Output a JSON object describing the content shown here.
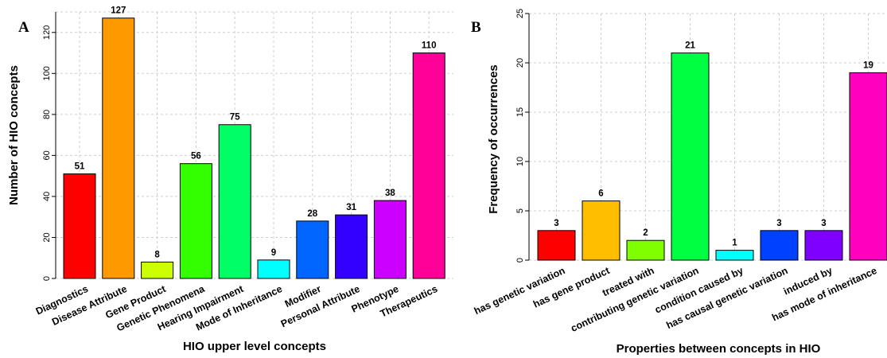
{
  "chart_data": [
    {
      "type": "bar",
      "panel_label": "A",
      "xlabel": "HIO upper level concepts",
      "ylabel": "Number of HIO concepts",
      "ylim": [
        0,
        130
      ],
      "yticks": [
        0,
        20,
        40,
        60,
        80,
        100,
        120
      ],
      "grid": true,
      "categories": [
        "Diagnostics",
        "Disease Attribute",
        "Gene Product",
        "Genetic Phenomena",
        "Hearing Impairment",
        "Mode of Inheritance",
        "Modifier",
        "Personal Attribute",
        "Phenotype",
        "Therapeutics"
      ],
      "values": [
        51,
        127,
        8,
        56,
        75,
        9,
        28,
        31,
        38,
        110
      ],
      "colors": [
        "#ff0000",
        "#ff9900",
        "#ccff00",
        "#33ff00",
        "#00ff66",
        "#00ffff",
        "#0066ff",
        "#3300ff",
        "#cc00ff",
        "#ff0099"
      ]
    },
    {
      "type": "bar",
      "panel_label": "B",
      "xlabel": "Properties between concepts in HIO",
      "ylabel": "Frequency of occurrences",
      "ylim": [
        0,
        25
      ],
      "yticks": [
        0,
        5,
        10,
        15,
        20,
        25
      ],
      "grid": true,
      "categories": [
        "has genetic variation",
        "has gene product",
        "treated with",
        "contributing genetic variation",
        "condition caused by",
        "has causal genetic variation",
        "induced by",
        "has mode of inheritance"
      ],
      "values": [
        3,
        6,
        2,
        21,
        1,
        3,
        3,
        19
      ],
      "colors": [
        "#ff0000",
        "#ffbf00",
        "#80ff00",
        "#00ff40",
        "#00ffff",
        "#0040ff",
        "#8000ff",
        "#ff00bf"
      ]
    }
  ]
}
